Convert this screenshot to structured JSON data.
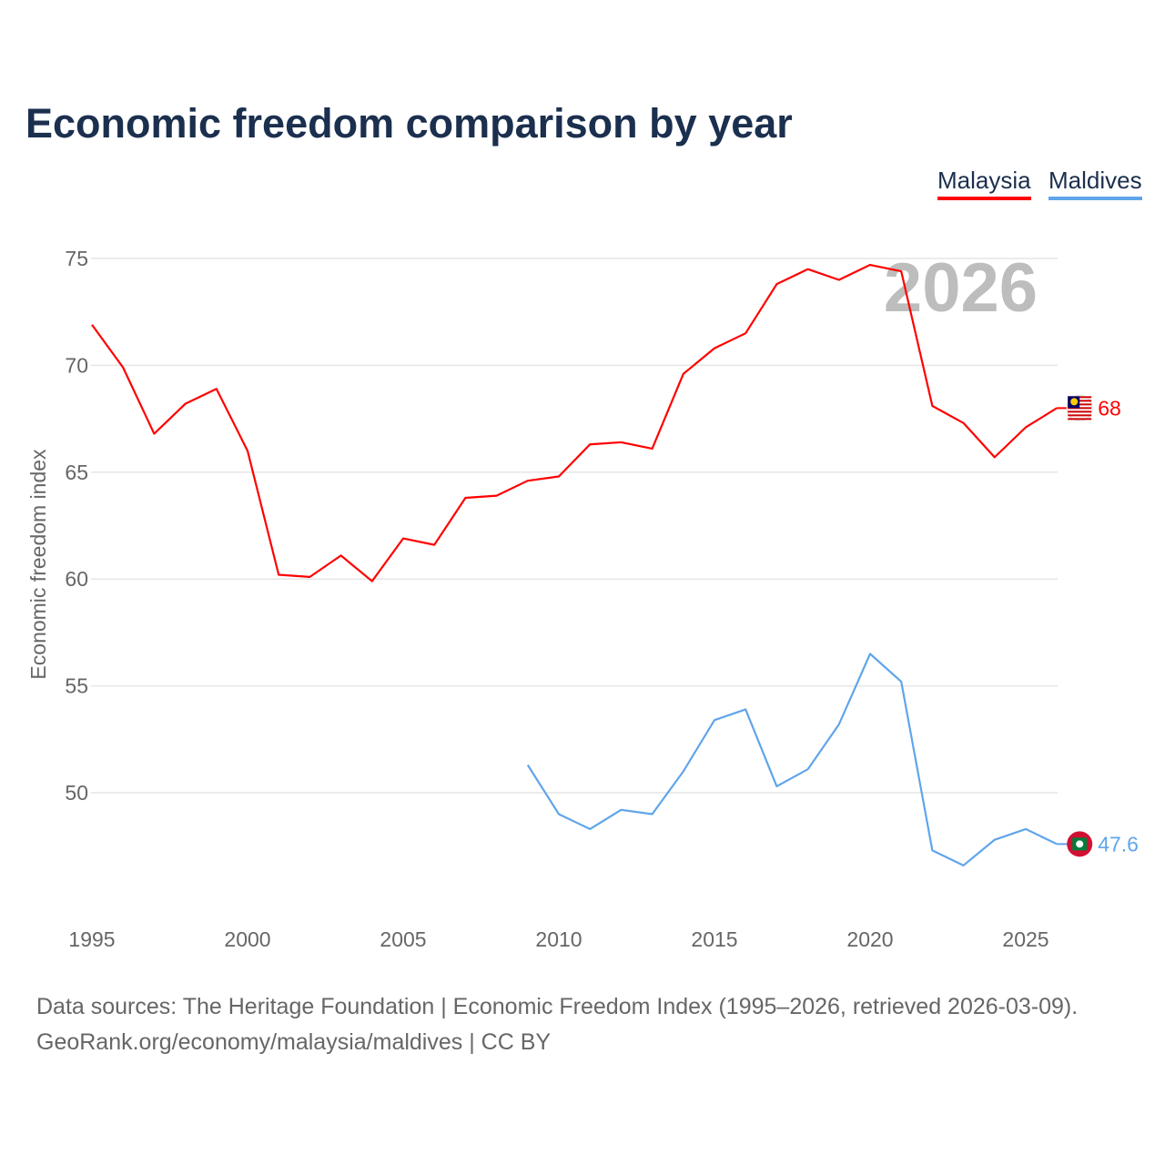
{
  "title": "Economic freedom comparison by year",
  "footer": {
    "line1": "Data sources: The Heritage Foundation | Economic Freedom Index (1995–2026, retrieved 2026-03-09).",
    "line2": "GeoRank.org/economy/malaysia/maldives | CC BY"
  },
  "chart_data": {
    "type": "line",
    "title": "Economic freedom comparison by year",
    "xlabel": "",
    "ylabel": "Economic freedom index",
    "xlim": [
      1995,
      2026
    ],
    "ylim": [
      45,
      77
    ],
    "xticks": [
      1995,
      2000,
      2005,
      2010,
      2015,
      2020,
      2025
    ],
    "yticks": [
      50,
      55,
      60,
      65,
      70,
      75
    ],
    "grid": true,
    "legend_placement": "top-right",
    "watermark_year": "2026",
    "series": [
      {
        "name": "Malaysia",
        "color": "#ff0000",
        "end_label": "68",
        "x": [
          1995,
          1996,
          1997,
          1998,
          1999,
          2000,
          2001,
          2002,
          2003,
          2004,
          2005,
          2006,
          2007,
          2008,
          2009,
          2010,
          2011,
          2012,
          2013,
          2014,
          2015,
          2016,
          2017,
          2018,
          2019,
          2020,
          2021,
          2022,
          2023,
          2024,
          2025,
          2026
        ],
        "values": [
          71.9,
          69.9,
          66.8,
          68.2,
          68.9,
          66.0,
          60.2,
          60.1,
          61.1,
          59.9,
          61.9,
          61.6,
          63.8,
          63.9,
          64.6,
          64.8,
          66.3,
          66.4,
          66.1,
          69.6,
          70.8,
          71.5,
          73.8,
          74.5,
          74.0,
          74.7,
          74.4,
          68.1,
          67.3,
          65.7,
          67.1,
          68.0
        ]
      },
      {
        "name": "Maldives",
        "color": "#60a5ea",
        "end_label": "47.6",
        "x": [
          2009,
          2010,
          2011,
          2012,
          2013,
          2014,
          2015,
          2016,
          2017,
          2018,
          2019,
          2020,
          2021,
          2022,
          2023,
          2024,
          2025,
          2026
        ],
        "values": [
          51.3,
          49.0,
          48.3,
          49.2,
          49.0,
          51.0,
          53.4,
          53.9,
          50.3,
          51.1,
          53.2,
          56.5,
          55.2,
          47.3,
          46.6,
          47.8,
          48.3,
          47.6
        ]
      }
    ]
  }
}
